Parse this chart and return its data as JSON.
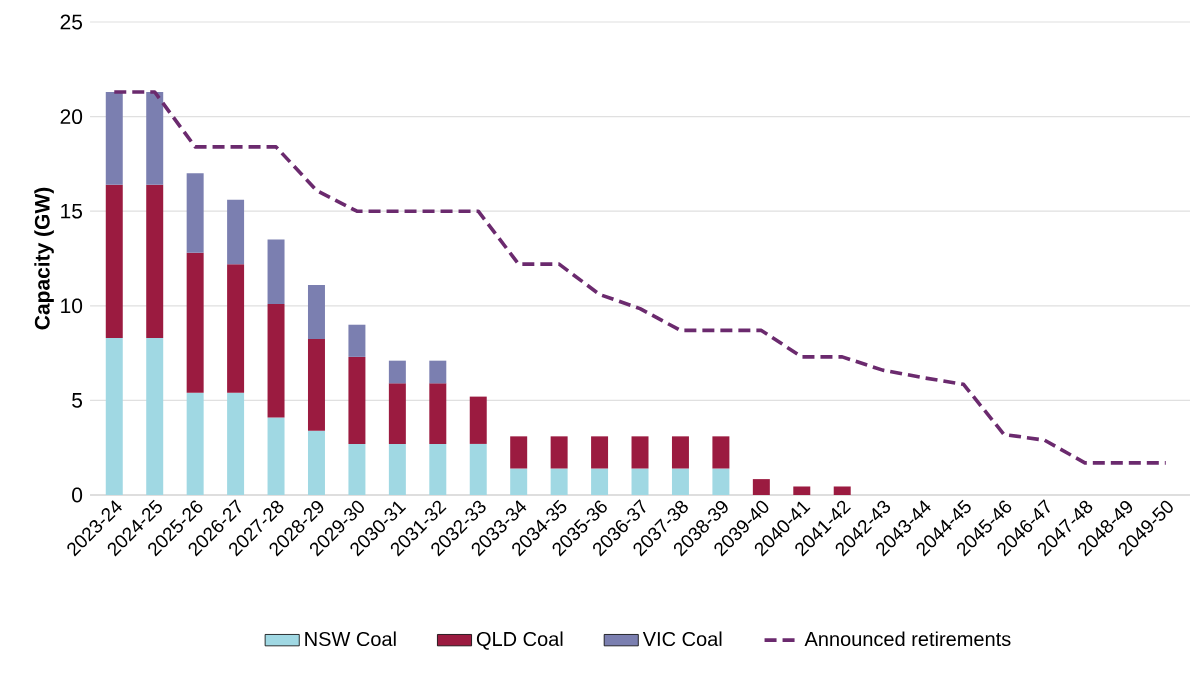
{
  "chart_data": {
    "type": "bar",
    "stacked": true,
    "ylabel": "Capacity (GW)",
    "categories": [
      "2023-24",
      "2024-25",
      "2025-26",
      "2026-27",
      "2027-28",
      "2028-29",
      "2029-30",
      "2030-31",
      "2031-32",
      "2032-33",
      "2033-34",
      "2034-35",
      "2035-36",
      "2036-37",
      "2037-38",
      "2038-39",
      "2039-40",
      "2040-41",
      "2041-42",
      "2042-43",
      "2043-44",
      "2044-45",
      "2045-46",
      "2046-47",
      "2047-48",
      "2048-49",
      "2049-50"
    ],
    "series": [
      {
        "name": "NSW Coal",
        "color": "#a0d8e3",
        "values": [
          8.3,
          8.3,
          5.4,
          5.4,
          4.1,
          3.4,
          2.7,
          2.7,
          2.7,
          2.7,
          1.4,
          1.4,
          1.4,
          1.4,
          1.4,
          1.4,
          null,
          null,
          null,
          null,
          null,
          null,
          null,
          null,
          null,
          null,
          null
        ]
      },
      {
        "name": "QLD Coal",
        "color": "#9b1b40",
        "values": [
          8.1,
          8.1,
          7.4,
          6.8,
          6.0,
          4.85,
          4.6,
          3.2,
          3.2,
          2.5,
          1.7,
          1.7,
          1.7,
          1.7,
          1.7,
          1.7,
          0.84,
          0.45,
          0.45,
          null,
          null,
          null,
          null,
          null,
          null,
          null,
          null
        ]
      },
      {
        "name": "VIC Coal",
        "color": "#7b7fb0",
        "values": [
          4.9,
          4.9,
          4.2,
          3.4,
          3.4,
          2.85,
          1.7,
          1.2,
          1.2,
          null,
          null,
          null,
          null,
          null,
          null,
          null,
          null,
          null,
          null,
          null,
          null,
          null,
          null,
          null,
          null,
          null,
          null
        ]
      },
      {
        "name": "Announced retirements",
        "type": "line",
        "line_style": "dashed",
        "color": "#6b2a6e",
        "values": [
          21.3,
          21.3,
          18.4,
          18.4,
          18.4,
          16.1,
          15.0,
          15.0,
          15.0,
          15.0,
          12.2,
          12.2,
          10.6,
          9.85,
          8.7,
          8.7,
          8.7,
          7.3,
          7.3,
          6.6,
          6.2,
          5.85,
          3.2,
          2.9,
          1.7,
          1.7,
          1.7
        ]
      }
    ],
    "ylim": [
      0,
      25
    ],
    "yticks": [
      0,
      5,
      10,
      15,
      20,
      25
    ],
    "grid": "y",
    "legend": "bottom"
  }
}
